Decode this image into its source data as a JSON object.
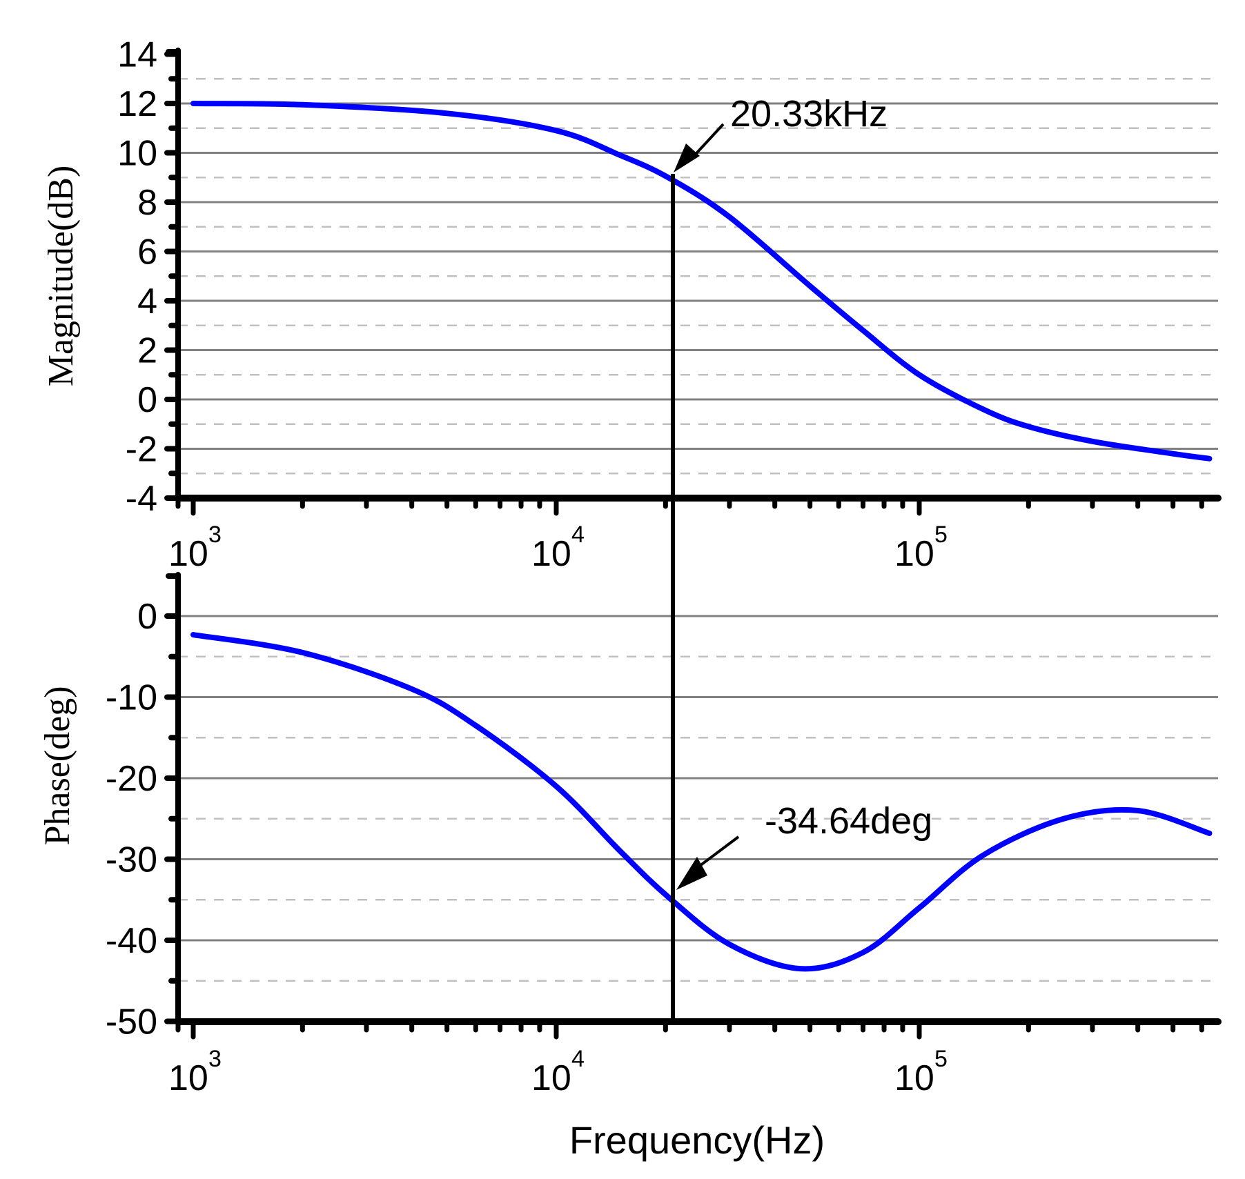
{
  "chart_data": [
    {
      "type": "line",
      "title": "",
      "xlabel": "",
      "ylabel": "Magnitude(dB)",
      "xscale": "log",
      "xlim": [
        1000,
        630000
      ],
      "ylim": [
        -4,
        14
      ],
      "yticks": [
        -4,
        -2,
        0,
        2,
        4,
        6,
        8,
        10,
        12,
        14
      ],
      "xticks": [
        "10^3",
        "10^4",
        "10^5"
      ],
      "grid": true,
      "series": [
        {
          "name": "Magnitude",
          "color": "#0000ff",
          "x": [
            1000,
            2000,
            5000,
            10000,
            15000,
            20330,
            30000,
            50000,
            70000,
            100000,
            150000,
            200000,
            300000,
            500000,
            630000
          ],
          "y": [
            12.0,
            11.95,
            11.6,
            10.9,
            9.9,
            9.0,
            7.4,
            4.6,
            2.8,
            1.0,
            -0.4,
            -1.1,
            -1.7,
            -2.2,
            -2.4
          ]
        }
      ],
      "annotations": [
        {
          "text": "20.33kHz",
          "x": 20330,
          "y": 9.0
        }
      ]
    },
    {
      "type": "line",
      "title": "",
      "xlabel": "Frequency(Hz)",
      "ylabel": "Phase(deg)",
      "xscale": "log",
      "xlim": [
        1000,
        630000
      ],
      "ylim": [
        -50,
        5
      ],
      "yticks": [
        -50,
        -40,
        -30,
        -20,
        -10,
        0
      ],
      "xticks": [
        "10^3",
        "10^4",
        "10^5"
      ],
      "grid": true,
      "series": [
        {
          "name": "Phase",
          "color": "#0000ff",
          "x": [
            1000,
            2000,
            4000,
            6000,
            10000,
            15000,
            20330,
            30000,
            47000,
            70000,
            100000,
            150000,
            250000,
            400000,
            630000
          ],
          "y": [
            -2.3,
            -4.5,
            -9.0,
            -13.5,
            -21.0,
            -29.0,
            -34.64,
            -40.5,
            -43.5,
            -41.5,
            -36.0,
            -29.5,
            -25.0,
            -24.0,
            -26.8
          ]
        }
      ],
      "annotations": [
        {
          "text": "-34.64deg",
          "x": 20330,
          "y": -34.64
        }
      ]
    }
  ],
  "labels": {
    "mag_ylabel": "Magnitude(dB)",
    "phase_ylabel": "Phase(deg)",
    "xlabel": "Frequency(Hz)",
    "mag_annotation": "20.33kHz",
    "phase_annotation": "-34.64deg",
    "mag_yticks": [
      "14",
      "12",
      "10",
      "8",
      "6",
      "4",
      "2",
      "0",
      "-2",
      "-4"
    ],
    "phase_yticks": [
      "0",
      "-10",
      "-20",
      "-30",
      "-40",
      "-50"
    ],
    "xtick_base": "10",
    "xtick_exp": [
      "3",
      "4",
      "5"
    ]
  },
  "colors": {
    "curve": "#0000ff",
    "major_grid": "#808080",
    "minor_grid": "#c0c0c0",
    "axis": "#000000"
  }
}
